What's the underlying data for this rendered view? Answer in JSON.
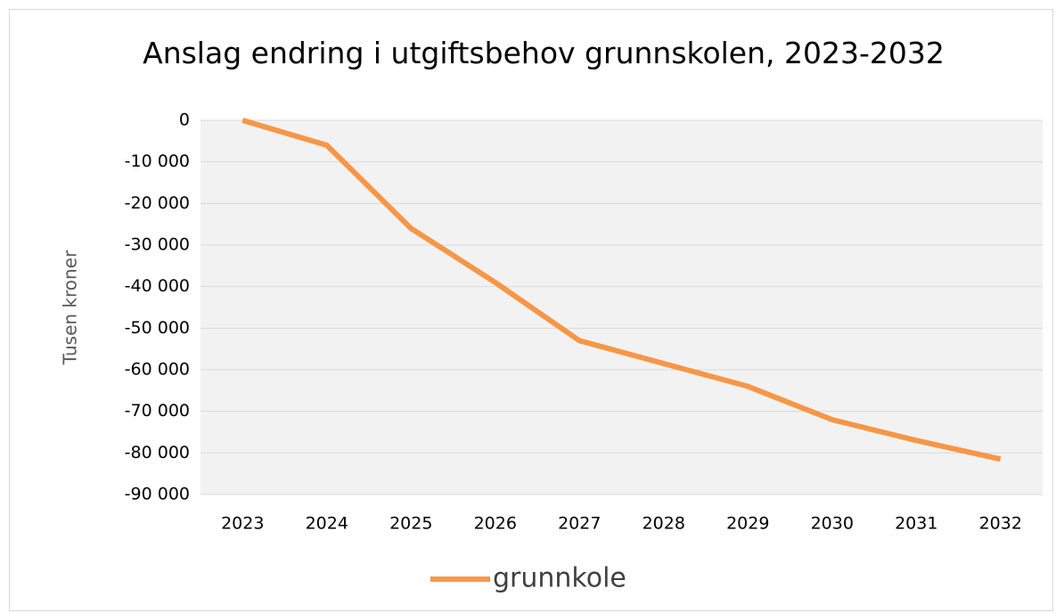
{
  "chart_data": {
    "type": "line",
    "title": "Anslag endring i utgiftsbehov grunnskolen, 2023-2032",
    "y_label": "Tusen kroner",
    "categories": [
      "2023",
      "2024",
      "2025",
      "2026",
      "2027",
      "2028",
      "2029",
      "2030",
      "2031",
      "2032"
    ],
    "series": [
      {
        "name": "grunnkole",
        "color": "#f79646",
        "values": [
          0,
          -6000,
          -26000,
          -39000,
          -53000,
          -58500,
          -64000,
          -72000,
          -77000,
          -81500
        ]
      }
    ],
    "ylim": [
      -90000,
      0
    ],
    "yticks": [
      0,
      {
        "value": -10000,
        "label": "-10 000"
      },
      {
        "value": -20000,
        "label": "-20 000"
      },
      {
        "value": -30000,
        "label": "-30 000"
      },
      {
        "value": -40000,
        "label": "-40 000"
      },
      {
        "value": -50000,
        "label": "-50 000"
      },
      {
        "value": -60000,
        "label": "-60 000"
      },
      {
        "value": -70000,
        "label": "-70 000"
      },
      {
        "value": -80000,
        "label": "-80 000"
      },
      {
        "value": -90000,
        "label": "-90 000"
      }
    ],
    "grid": true,
    "legend": "bottom"
  }
}
